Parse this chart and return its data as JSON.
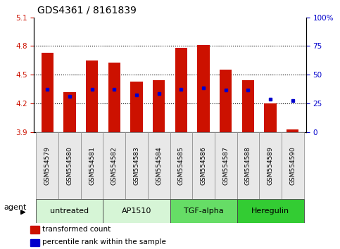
{
  "title": "GDS4361 / 8161839",
  "samples": [
    "GSM554579",
    "GSM554580",
    "GSM554581",
    "GSM554582",
    "GSM554583",
    "GSM554584",
    "GSM554585",
    "GSM554586",
    "GSM554587",
    "GSM554588",
    "GSM554589",
    "GSM554590"
  ],
  "red_values": [
    4.73,
    4.32,
    4.65,
    4.63,
    4.43,
    4.44,
    4.78,
    4.81,
    4.55,
    4.44,
    4.2,
    3.93
  ],
  "blue_values": [
    4.35,
    4.27,
    4.35,
    4.35,
    4.29,
    4.3,
    4.35,
    4.36,
    4.34,
    4.34,
    4.24,
    4.23
  ],
  "y_min": 3.9,
  "y_max": 5.1,
  "y_ticks_left": [
    3.9,
    4.2,
    4.5,
    4.8,
    5.1
  ],
  "y_ticks_right": [
    0,
    25,
    50,
    75,
    100
  ],
  "groups": [
    {
      "label": "untreated",
      "start": 0,
      "end": 2,
      "color": "#d6f5d6"
    },
    {
      "label": "AP1510",
      "start": 3,
      "end": 5,
      "color": "#d6f5d6"
    },
    {
      "label": "TGF-alpha",
      "start": 6,
      "end": 8,
      "color": "#66dd66"
    },
    {
      "label": "Heregulin",
      "start": 9,
      "end": 11,
      "color": "#33cc33"
    }
  ],
  "agent_label": "agent",
  "bar_color": "#cc1100",
  "blue_color": "#0000cc",
  "bg_color": "#ffffff",
  "tick_color_left": "#cc1100",
  "tick_color_right": "#0000cc",
  "legend_items": [
    {
      "color": "#cc1100",
      "label": "transformed count"
    },
    {
      "color": "#0000cc",
      "label": "percentile rank within the sample"
    }
  ],
  "bar_width": 0.55,
  "font_size_title": 10,
  "font_size_ticks": 7.5,
  "font_size_gsm": 6.5,
  "font_size_group": 8,
  "font_size_legend": 7.5
}
